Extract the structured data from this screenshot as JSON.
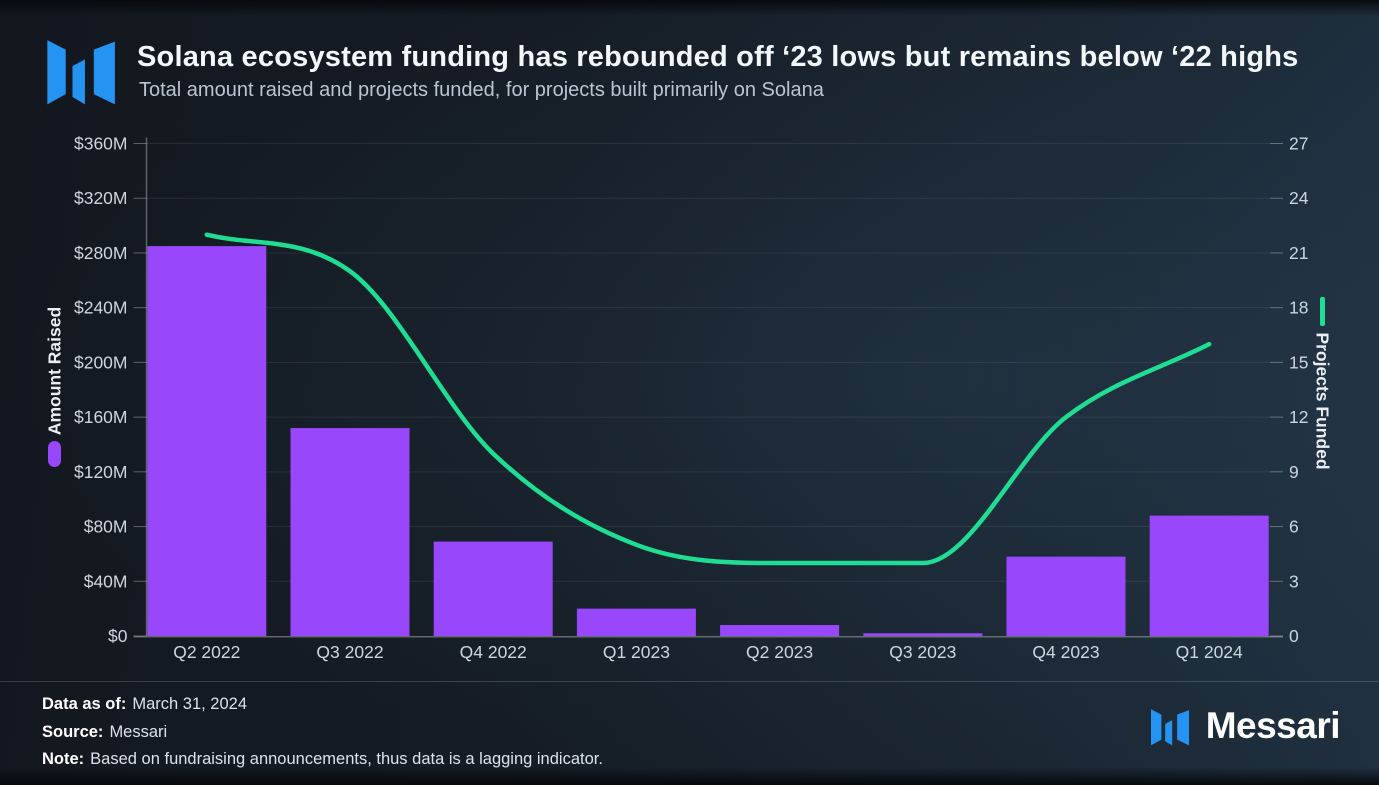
{
  "header": {
    "title": "Solana ecosystem funding has rebounded off ‘23 lows but remains below ‘22 highs",
    "subtitle": "Total amount raised and projects funded, for projects built primarily on Solana"
  },
  "colors": {
    "bar_purple": "#9947FB",
    "line_green": "#1FDE94",
    "logo_blue": "#2493F2",
    "tick_text": "#cdd6de",
    "gridline": "rgba(255,255,255,0.08)",
    "axis_line": "rgba(255,255,255,0.32)"
  },
  "chart_data": {
    "type": "bar+line",
    "title": "Solana ecosystem funding",
    "categories": [
      "Q2 2022",
      "Q3 2022",
      "Q4 2022",
      "Q1 2023",
      "Q2 2023",
      "Q3 2023",
      "Q4 2023",
      "Q1 2024"
    ],
    "series": [
      {
        "name": "Amount Raised",
        "type": "bar",
        "unit": "USD millions",
        "values": [
          285,
          152,
          69,
          20,
          8,
          2,
          58,
          88
        ]
      },
      {
        "name": "Projects Funded",
        "type": "line",
        "unit": "projects",
        "values": [
          22,
          20,
          10,
          5,
          4,
          4,
          12,
          16
        ]
      }
    ],
    "left_axis": {
      "label": "Amount Raised",
      "tick_labels": [
        "$0",
        "$40M",
        "$80M",
        "$120M",
        "$160M",
        "$200M",
        "$240M",
        "$280M",
        "$320M",
        "$360M"
      ],
      "min": 0,
      "max": 360,
      "step": 40
    },
    "right_axis": {
      "label": "Projects Funded",
      "tick_labels": [
        "0",
        "3",
        "6",
        "9",
        "12",
        "15",
        "18",
        "21",
        "24",
        "27"
      ],
      "min": 0,
      "max": 27,
      "step": 3
    },
    "grid": true,
    "legend_position": "axis-titles"
  },
  "footer": {
    "data_as_of_label": "Data as of:",
    "data_as_of": "March 31, 2024",
    "source_label": "Source:",
    "source": "Messari",
    "note_label": "Note:",
    "note": "Based on fundraising announcements, thus data is a lagging indicator.",
    "brand": "Messari"
  }
}
